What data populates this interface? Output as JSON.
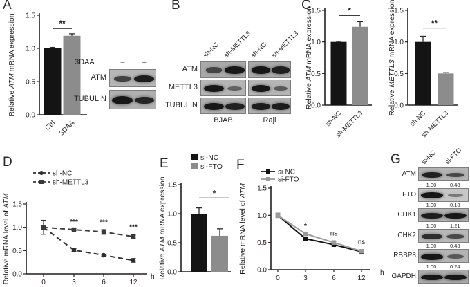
{
  "colors": {
    "black_bar": "#141414",
    "gray_bar": "#8c8c8c",
    "axis": "#231f20",
    "band": "#171717",
    "dark_line": "#2e2e2e",
    "gray_line": "#9b9b9b"
  },
  "panels": {
    "A": {
      "label": "A",
      "blot": {
        "treatment_label": "3DAA",
        "lane_signs": [
          "−",
          "+"
        ],
        "rows": [
          {
            "label": "ATM",
            "bg": "#b6b6b6",
            "bands": [
              0.62,
              0.95
            ]
          },
          {
            "label": "TUBULIN",
            "bg": "#b0b0b0",
            "bands": [
              1.0,
              0.85
            ]
          }
        ]
      }
    },
    "B": {
      "label": "B",
      "lane_labels": [
        "sh-NC",
        "sh-METTL3",
        "sh-NC",
        "sh-METTL3"
      ],
      "rows": [
        {
          "label": "ATM",
          "bg": "#a9a9a9",
          "groups": [
            [
              0.55,
              1.0
            ],
            [
              1.0,
              0.92
            ]
          ]
        },
        {
          "label": "METTL3",
          "bg": "#b5b5b5",
          "groups": [
            [
              1.0,
              0.32
            ],
            [
              1.0,
              0.38
            ]
          ]
        },
        {
          "label": "TUBULIN",
          "bg": "#aeaeae",
          "groups": [
            [
              1.0,
              0.9
            ],
            [
              0.95,
              0.95
            ]
          ]
        }
      ],
      "group_labels": [
        "BJAB",
        "Raji"
      ]
    },
    "C": {
      "label": "C"
    },
    "D": {
      "label": "D"
    },
    "E": {
      "label": "E"
    },
    "F": {
      "label": "F"
    },
    "G": {
      "label": "G",
      "lane_labels": [
        "si-NC",
        "si-FTO"
      ],
      "rows": [
        {
          "label": "ATM",
          "bg": "#b4b4b4",
          "bands": [
            0.9,
            0.55
          ],
          "values": [
            "1.00",
            "0.48"
          ]
        },
        {
          "label": "FTO",
          "bg": "#c6c6c6",
          "bands": [
            1.0,
            0.2
          ],
          "values": [
            "1.00",
            "0.18"
          ]
        },
        {
          "label": "CHK1",
          "bg": "#b0b0b0",
          "bands": [
            0.95,
            1.0
          ],
          "values": [
            "1.00",
            "1.21"
          ]
        },
        {
          "label": "CHK2",
          "bg": "#b8b8b8",
          "bands": [
            0.8,
            0.55
          ],
          "values": [
            "1.00",
            "0.43"
          ]
        },
        {
          "label": "RBBP8",
          "bg": "#b4b4b4",
          "bands": [
            1.0,
            0.4
          ],
          "values": [
            "1.00",
            "0.24"
          ]
        },
        {
          "label": "GAPDH",
          "bg": "#ababab",
          "bands": [
            1.0,
            1.0
          ],
          "values": []
        }
      ]
    }
  },
  "chart_data": [
    {
      "id": "A",
      "type": "bar",
      "ylabel": "Relative |ATM| mRNA expression",
      "categories": [
        "Ctrl",
        "3DAA"
      ],
      "values": [
        1.0,
        1.19
      ],
      "errors": [
        0.015,
        0.03
      ],
      "bar_colors": [
        "#141414",
        "#8c8c8c"
      ],
      "ylim": [
        0,
        1.5
      ],
      "yticks": [
        0,
        0.5,
        1.0,
        1.5
      ],
      "significance": {
        "label": "**",
        "y": 1.3
      }
    },
    {
      "id": "C-left",
      "type": "bar",
      "ylabel": "Relative |ATM| mRNA expression",
      "categories": [
        "sh-NC",
        "sh-METTL3"
      ],
      "values": [
        1.0,
        1.24
      ],
      "errors": [
        0.01,
        0.08
      ],
      "bar_colors": [
        "#141414",
        "#8c8c8c"
      ],
      "ylim": [
        0,
        1.5
      ],
      "yticks": [
        0,
        0.5,
        1.0,
        1.5
      ],
      "significance": {
        "label": "*",
        "y": 1.42
      }
    },
    {
      "id": "C-right",
      "type": "bar",
      "ylabel": "Relative |METTL3| mRNA expression",
      "categories": [
        "sh-NC",
        "sh-METTL3"
      ],
      "values": [
        1.0,
        0.5
      ],
      "errors": [
        0.09,
        0.012
      ],
      "bar_colors": [
        "#141414",
        "#8c8c8c"
      ],
      "ylim": [
        0,
        1.5
      ],
      "yticks": [
        0,
        0.5,
        1.0,
        1.5
      ],
      "significance": {
        "label": "**",
        "y": 1.22
      }
    },
    {
      "id": "D",
      "type": "line",
      "ylabel": "Relative mRNA level of |ATM|",
      "xlabel": "h",
      "x": [
        0,
        3,
        6,
        12
      ],
      "ylim": [
        0,
        1.5
      ],
      "yticks": [
        0,
        0.5,
        1.0,
        1.5
      ],
      "legend_position": "top-left",
      "series": [
        {
          "name": "sh-NC",
          "marker": "circle",
          "dash": true,
          "color": "#2e2e2e",
          "values": [
            1.0,
            0.51,
            0.4,
            0.29
          ],
          "errors": [
            0.15,
            0.03,
            0.02,
            0.04
          ]
        },
        {
          "name": "sh-METTL3",
          "marker": "square",
          "dash": true,
          "color": "#3a3a3a",
          "values": [
            1.0,
            0.95,
            0.9,
            0.8
          ],
          "errors": [
            0.04,
            0.02,
            0.05,
            0.03
          ]
        }
      ],
      "annotations": [
        {
          "x": 3,
          "y": 1.07,
          "label": "***"
        },
        {
          "x": 6,
          "y": 1.06,
          "label": "***"
        },
        {
          "x": 12,
          "y": 0.96,
          "label": "***"
        }
      ]
    },
    {
      "id": "E",
      "type": "bar",
      "ylabel": "Relative |ATM| mRNA expression",
      "categories": [
        "si-NC",
        "si-FTO"
      ],
      "legend": [
        "si-NC",
        "si-FTO"
      ],
      "values": [
        1.0,
        0.62
      ],
      "errors": [
        0.1,
        0.12
      ],
      "bar_colors": [
        "#141414",
        "#8c8c8c"
      ],
      "ylim": [
        0,
        1.5
      ],
      "yticks": [
        0,
        0.5,
        1.0,
        1.5
      ],
      "significance": {
        "label": "*",
        "y": 1.27
      }
    },
    {
      "id": "F",
      "type": "line",
      "ylabel": "Relative mRNA level of |ATM|",
      "xlabel": "h",
      "x": [
        0,
        3,
        6,
        12
      ],
      "ylim": [
        0,
        1.5
      ],
      "yticks": [
        0,
        0.5,
        1.0,
        1.5
      ],
      "legend_position": "top-left",
      "series": [
        {
          "name": "si-NC",
          "marker": "square",
          "dash": false,
          "color": "#141414",
          "values": [
            1.0,
            0.57,
            0.46,
            0.33
          ],
          "errors": [
            0.04,
            0.02,
            0.02,
            0.02
          ]
        },
        {
          "name": "si-FTO",
          "marker": "square",
          "dash": false,
          "color": "#9b9b9b",
          "values": [
            1.0,
            0.66,
            0.5,
            0.34
          ],
          "errors": [
            0.04,
            0.03,
            0.02,
            0.02
          ]
        }
      ],
      "annotations": [
        {
          "x": 3,
          "y": 0.76,
          "label": "*"
        },
        {
          "x": 6,
          "y": 0.63,
          "label": "ns"
        },
        {
          "x": 12,
          "y": 0.47,
          "label": "ns"
        }
      ]
    }
  ]
}
